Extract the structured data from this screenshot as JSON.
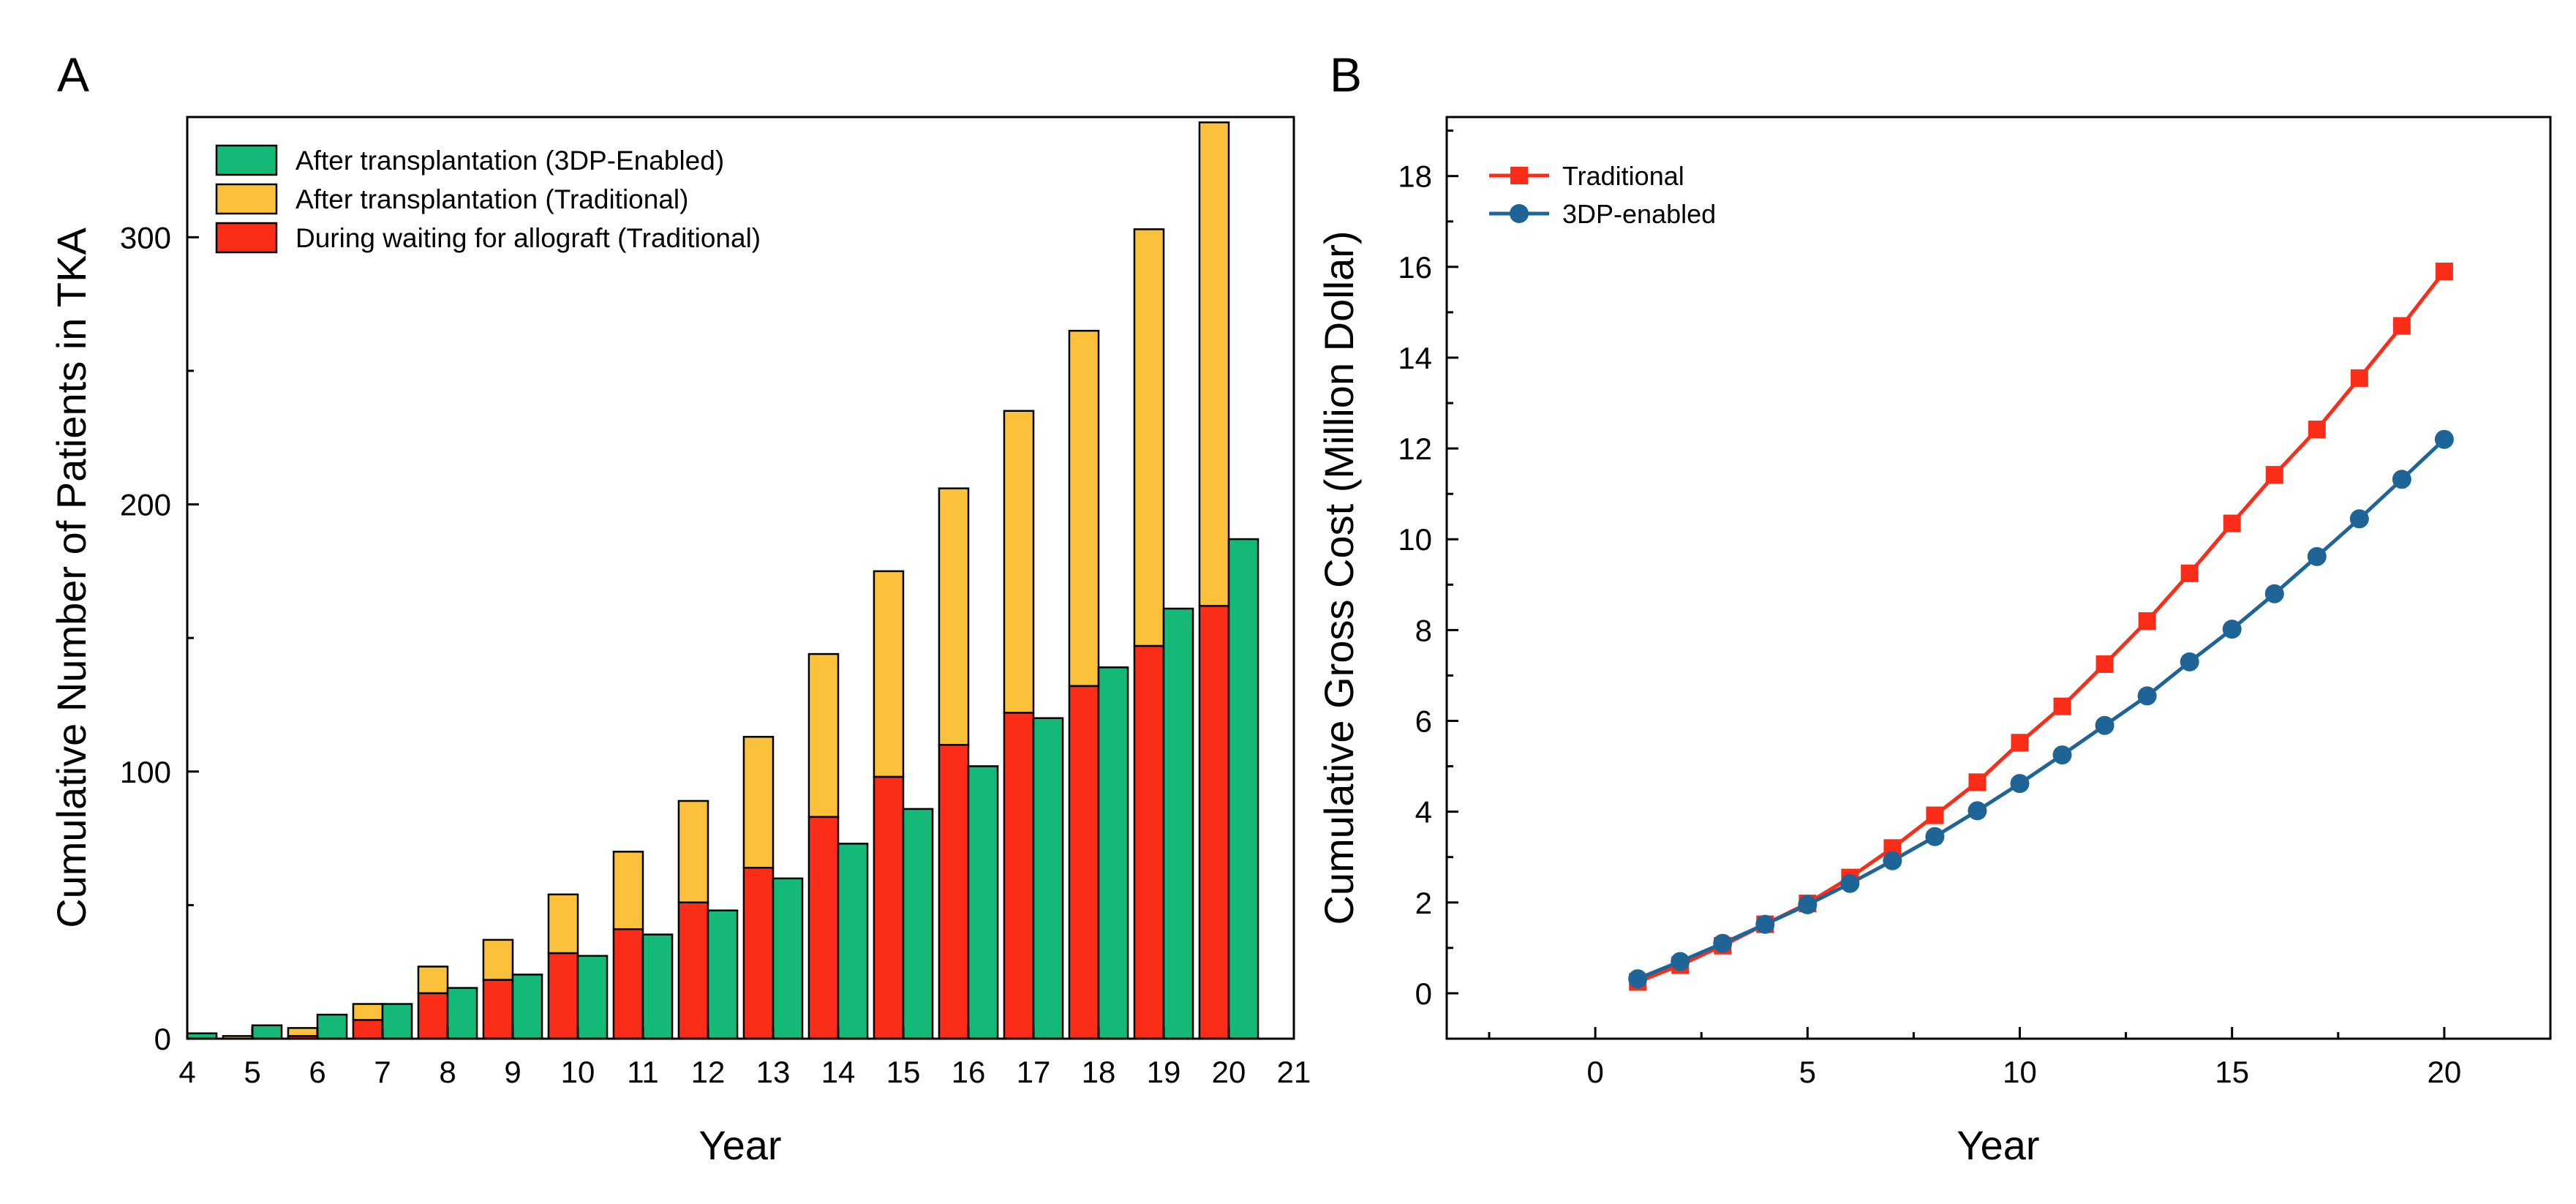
{
  "chart_data": [
    {
      "panel_label": "A",
      "type": "bar",
      "stacked": true,
      "xlabel": "Year",
      "ylabel": "Cumulative Number of Patients in TKA",
      "xlim": [
        4,
        21
      ],
      "ylim": [
        0,
        345
      ],
      "xticks": [
        4,
        5,
        6,
        7,
        8,
        9,
        10,
        11,
        12,
        13,
        14,
        15,
        16,
        17,
        18,
        19,
        20,
        21
      ],
      "yticks": [
        0,
        100,
        200,
        300
      ],
      "legend_position": "top-left",
      "colors": {
        "after_3dp": "#14b877",
        "after_traditional": "#fbc13b",
        "waiting_traditional": "#fb2d19"
      },
      "legend": [
        {
          "key": "after_3dp",
          "label": "After transplantation (3DP-Enabled)"
        },
        {
          "key": "after_traditional",
          "label": "After transplantation (Traditional)"
        },
        {
          "key": "waiting_traditional",
          "label": "During waiting for allograft (Traditional)"
        }
      ],
      "years": [
        4,
        5,
        6,
        7,
        8,
        9,
        10,
        11,
        12,
        13,
        14,
        15,
        16,
        17,
        18,
        19,
        20
      ],
      "traditional_waiting": [
        0,
        0,
        1,
        7,
        17,
        22,
        32,
        41,
        51,
        64,
        83,
        98,
        110,
        122,
        132,
        147,
        162
      ],
      "traditional_total": [
        0,
        1,
        4,
        13,
        27,
        37,
        54,
        70,
        89,
        113,
        144,
        175,
        206,
        235,
        265,
        303,
        343
      ],
      "enabled_3dp_after": [
        2,
        5,
        9,
        13,
        19,
        24,
        31,
        39,
        48,
        60,
        73,
        86,
        102,
        120,
        139,
        161,
        187
      ]
    },
    {
      "panel_label": "B",
      "type": "line",
      "xlabel": "Year",
      "ylabel": "Cumulative Gross Cost (Million Dollar)",
      "xlim": [
        -3.5,
        22.5
      ],
      "ylim": [
        -1,
        19.3
      ],
      "xticks": [
        0,
        5,
        10,
        15,
        20
      ],
      "yticks": [
        0,
        2,
        4,
        6,
        8,
        10,
        12,
        14,
        16,
        18
      ],
      "legend_position": "top-left",
      "x": [
        1,
        2,
        3,
        4,
        5,
        6,
        7,
        8,
        9,
        10,
        11,
        12,
        13,
        14,
        15,
        16,
        17,
        18,
        19,
        20
      ],
      "series": [
        {
          "name": "Traditional",
          "color": "#fb2d19",
          "marker": "square",
          "values": [
            0.25,
            0.62,
            1.05,
            1.52,
            1.98,
            2.55,
            3.2,
            3.92,
            4.65,
            5.52,
            6.32,
            7.25,
            8.2,
            9.25,
            10.35,
            11.42,
            12.42,
            13.55,
            14.7,
            15.9
          ]
        },
        {
          "name": "3DP-enabled",
          "color": "#1e6496",
          "marker": "circle",
          "values": [
            0.32,
            0.7,
            1.1,
            1.52,
            1.95,
            2.42,
            2.92,
            3.45,
            4.02,
            4.62,
            5.25,
            5.9,
            6.55,
            7.3,
            8.02,
            8.8,
            9.62,
            10.45,
            11.32,
            12.2
          ]
        }
      ]
    }
  ]
}
